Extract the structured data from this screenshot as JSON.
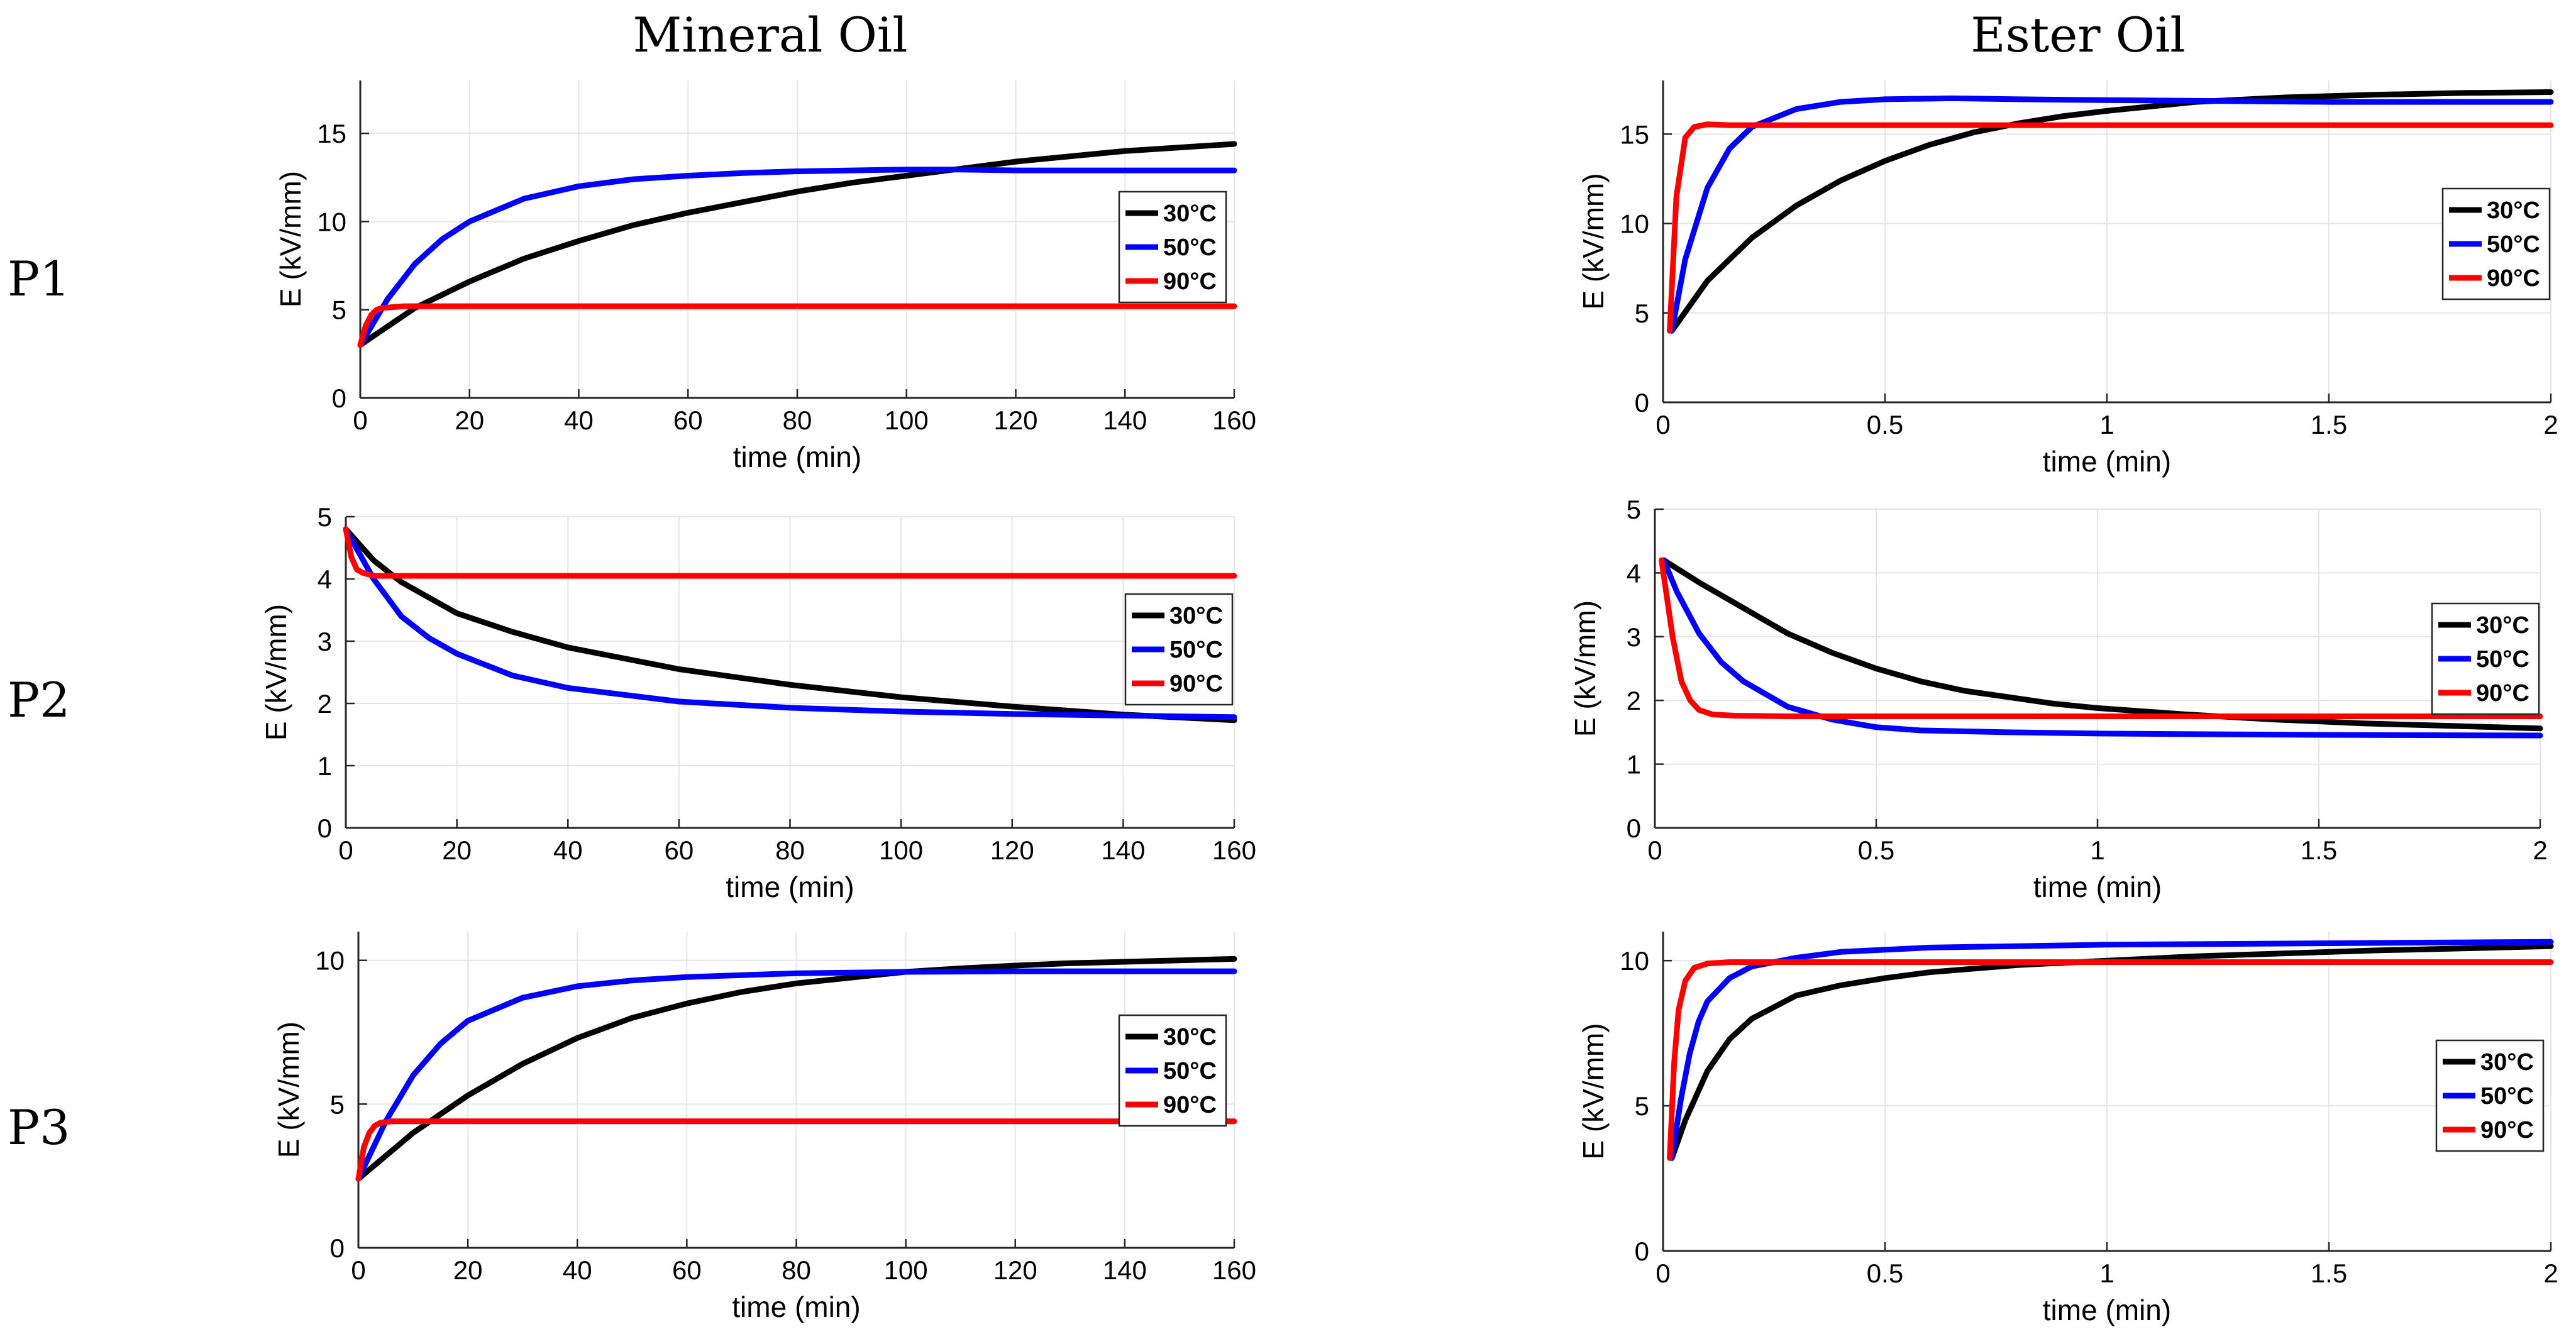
{
  "columns": [
    "Mineral Oil",
    "Ester Oil"
  ],
  "rows": [
    "P1",
    "P2",
    "P3"
  ],
  "colors": {
    "30": "#000000",
    "50": "#0000ff",
    "90": "#ff0000"
  },
  "chart_data": [
    {
      "id": "P1-mineral",
      "type": "line",
      "row": "P1",
      "column": "Mineral Oil",
      "xlabel": "time (min)",
      "ylabel": "E (kV/mm)",
      "xlim": [
        0,
        160
      ],
      "ylim": [
        0,
        18
      ],
      "xticks": [
        0,
        20,
        40,
        60,
        80,
        100,
        120,
        140,
        160
      ],
      "xtick_labels": [
        "0",
        "20",
        "40",
        "60",
        "80",
        "100",
        "120",
        "140",
        "160"
      ],
      "yticks": [
        0,
        5,
        10,
        15
      ],
      "ytick_labels": [
        "0",
        "5",
        "10",
        "15"
      ],
      "legend": "right",
      "series": [
        {
          "name": "30°C",
          "color": "#000000",
          "x": [
            0,
            10,
            20,
            30,
            40,
            50,
            60,
            70,
            80,
            90,
            100,
            110,
            120,
            130,
            140,
            150,
            160
          ],
          "y": [
            3.0,
            5.1,
            6.6,
            7.9,
            8.9,
            9.8,
            10.5,
            11.1,
            11.7,
            12.2,
            12.6,
            13.0,
            13.4,
            13.7,
            14.0,
            14.2,
            14.4
          ]
        },
        {
          "name": "50°C",
          "color": "#0000ff",
          "x": [
            0,
            5,
            10,
            15,
            20,
            30,
            40,
            50,
            60,
            70,
            80,
            90,
            100,
            110,
            120,
            140,
            160
          ],
          "y": [
            3.0,
            5.6,
            7.6,
            9.0,
            10.0,
            11.3,
            12.0,
            12.4,
            12.6,
            12.75,
            12.85,
            12.9,
            12.95,
            12.95,
            12.9,
            12.9,
            12.9
          ]
        },
        {
          "name": "90°C",
          "color": "#ff0000",
          "x": [
            0,
            1,
            2,
            3,
            4,
            6,
            8,
            20,
            60,
            100,
            160
          ],
          "y": [
            3.0,
            4.1,
            4.7,
            5.0,
            5.1,
            5.15,
            5.2,
            5.2,
            5.2,
            5.2,
            5.2
          ]
        }
      ]
    },
    {
      "id": "P1-ester",
      "type": "line",
      "row": "P1",
      "column": "Ester Oil",
      "xlabel": "time (min)",
      "ylabel": "E (kV/mm)",
      "xlim": [
        0,
        2
      ],
      "ylim": [
        0,
        18
      ],
      "xticks": [
        0,
        0.5,
        1,
        1.5,
        2
      ],
      "xtick_labels": [
        "0",
        "0.5",
        "1",
        "1.5",
        "2"
      ],
      "yticks": [
        0,
        5,
        10,
        15
      ],
      "ytick_labels": [
        "0",
        "5",
        "10",
        "15"
      ],
      "legend": "right",
      "series": [
        {
          "name": "30°C",
          "color": "#000000",
          "x": [
            0.02,
            0.1,
            0.2,
            0.3,
            0.4,
            0.5,
            0.6,
            0.7,
            0.8,
            0.9,
            1.0,
            1.2,
            1.4,
            1.6,
            1.8,
            2.0
          ],
          "y": [
            4.0,
            6.8,
            9.2,
            11.0,
            12.4,
            13.5,
            14.4,
            15.1,
            15.6,
            16.0,
            16.3,
            16.8,
            17.05,
            17.2,
            17.3,
            17.35
          ]
        },
        {
          "name": "50°C",
          "color": "#0000ff",
          "x": [
            0.02,
            0.05,
            0.1,
            0.15,
            0.2,
            0.3,
            0.4,
            0.5,
            0.65,
            0.8,
            1.0,
            1.5,
            2.0
          ],
          "y": [
            4.0,
            8.0,
            12.0,
            14.2,
            15.4,
            16.4,
            16.8,
            16.95,
            17.0,
            16.95,
            16.9,
            16.8,
            16.8
          ]
        },
        {
          "name": "90°C",
          "color": "#ff0000",
          "x": [
            0.015,
            0.03,
            0.05,
            0.07,
            0.1,
            0.15,
            0.5,
            1.0,
            2.0
          ],
          "y": [
            4.0,
            11.5,
            14.8,
            15.4,
            15.55,
            15.5,
            15.5,
            15.5,
            15.5
          ]
        }
      ]
    },
    {
      "id": "P2-mineral",
      "type": "line",
      "row": "P2",
      "column": "Mineral Oil",
      "xlabel": "time (min)",
      "ylabel": "E (kV/mm)",
      "xlim": [
        0,
        160
      ],
      "ylim": [
        0,
        5
      ],
      "xticks": [
        0,
        20,
        40,
        60,
        80,
        100,
        120,
        140,
        160
      ],
      "xtick_labels": [
        "0",
        "20",
        "40",
        "60",
        "80",
        "100",
        "120",
        "140",
        "160"
      ],
      "yticks": [
        0,
        1,
        2,
        3,
        4,
        5
      ],
      "ytick_labels": [
        "0",
        "1",
        "2",
        "3",
        "4",
        "5"
      ],
      "legend": "right",
      "series": [
        {
          "name": "30°C",
          "color": "#000000",
          "x": [
            0,
            5,
            10,
            20,
            30,
            40,
            60,
            80,
            100,
            120,
            140,
            160
          ],
          "y": [
            4.8,
            4.3,
            3.95,
            3.45,
            3.15,
            2.9,
            2.55,
            2.3,
            2.1,
            1.95,
            1.82,
            1.73
          ]
        },
        {
          "name": "50°C",
          "color": "#0000ff",
          "x": [
            0,
            5,
            10,
            15,
            20,
            30,
            40,
            60,
            80,
            100,
            120,
            160
          ],
          "y": [
            4.8,
            4.0,
            3.4,
            3.05,
            2.8,
            2.45,
            2.25,
            2.03,
            1.93,
            1.87,
            1.83,
            1.78
          ]
        },
        {
          "name": "90°C",
          "color": "#ff0000",
          "x": [
            0,
            1,
            2,
            3,
            5,
            10,
            160
          ],
          "y": [
            4.8,
            4.35,
            4.15,
            4.1,
            4.05,
            4.05,
            4.05
          ]
        }
      ]
    },
    {
      "id": "P2-ester",
      "type": "line",
      "row": "P2",
      "column": "Ester Oil",
      "xlabel": "time (min)",
      "ylabel": "E (kV/mm)",
      "xlim": [
        0,
        2
      ],
      "ylim": [
        0,
        5
      ],
      "xticks": [
        0,
        0.5,
        1,
        1.5,
        2
      ],
      "xtick_labels": [
        "0",
        "0.5",
        "1",
        "1.5",
        "2"
      ],
      "yticks": [
        0,
        1,
        2,
        3,
        4,
        5
      ],
      "ytick_labels": [
        "0",
        "1",
        "2",
        "3",
        "4",
        "5"
      ],
      "legend": "right",
      "series": [
        {
          "name": "30°C",
          "color": "#000000",
          "x": [
            0.02,
            0.1,
            0.2,
            0.3,
            0.4,
            0.5,
            0.6,
            0.7,
            0.8,
            0.9,
            1.0,
            1.2,
            1.4,
            1.6,
            1.8,
            2.0
          ],
          "y": [
            4.2,
            3.85,
            3.45,
            3.05,
            2.75,
            2.5,
            2.3,
            2.15,
            2.05,
            1.95,
            1.88,
            1.78,
            1.7,
            1.64,
            1.6,
            1.56
          ]
        },
        {
          "name": "50°C",
          "color": "#0000ff",
          "x": [
            0.02,
            0.05,
            0.1,
            0.15,
            0.2,
            0.3,
            0.4,
            0.5,
            0.6,
            0.8,
            1.0,
            1.5,
            2.0
          ],
          "y": [
            4.2,
            3.7,
            3.05,
            2.6,
            2.3,
            1.9,
            1.7,
            1.58,
            1.53,
            1.5,
            1.48,
            1.46,
            1.45
          ]
        },
        {
          "name": "90°C",
          "color": "#ff0000",
          "x": [
            0.015,
            0.04,
            0.06,
            0.08,
            0.1,
            0.13,
            0.18,
            0.3,
            1.0,
            2.0
          ],
          "y": [
            4.2,
            3.0,
            2.3,
            2.0,
            1.85,
            1.78,
            1.76,
            1.75,
            1.75,
            1.75
          ]
        }
      ]
    },
    {
      "id": "P3-mineral",
      "type": "line",
      "row": "P3",
      "column": "Mineral Oil",
      "xlabel": "time (min)",
      "ylabel": "E (kV/mm)",
      "xlim": [
        0,
        160
      ],
      "ylim": [
        0,
        11
      ],
      "xticks": [
        0,
        20,
        40,
        60,
        80,
        100,
        120,
        140,
        160
      ],
      "xtick_labels": [
        "0",
        "20",
        "40",
        "60",
        "80",
        "100",
        "120",
        "140",
        "160"
      ],
      "yticks": [
        0,
        5,
        10
      ],
      "ytick_labels": [
        "0",
        "5",
        "10"
      ],
      "legend": "right",
      "series": [
        {
          "name": "30°C",
          "color": "#000000",
          "x": [
            0,
            10,
            20,
            30,
            40,
            50,
            60,
            70,
            80,
            90,
            100,
            110,
            120,
            130,
            140,
            150,
            160
          ],
          "y": [
            2.4,
            4.0,
            5.3,
            6.4,
            7.3,
            8.0,
            8.5,
            8.9,
            9.2,
            9.4,
            9.6,
            9.72,
            9.82,
            9.9,
            9.95,
            10.0,
            10.05
          ]
        },
        {
          "name": "50°C",
          "color": "#0000ff",
          "x": [
            0,
            5,
            10,
            15,
            20,
            30,
            40,
            50,
            60,
            80,
            100,
            120,
            160
          ],
          "y": [
            2.4,
            4.4,
            6.0,
            7.1,
            7.9,
            8.7,
            9.1,
            9.3,
            9.42,
            9.55,
            9.6,
            9.62,
            9.62
          ]
        },
        {
          "name": "90°C",
          "color": "#ff0000",
          "x": [
            0,
            1,
            2,
            3,
            4,
            6,
            10,
            160
          ],
          "y": [
            2.4,
            3.5,
            4.0,
            4.25,
            4.35,
            4.4,
            4.4,
            4.4
          ]
        }
      ]
    },
    {
      "id": "P3-ester",
      "type": "line",
      "row": "P3",
      "column": "Ester Oil",
      "xlabel": "time (min)",
      "ylabel": "E (kV/mm)",
      "xlim": [
        0,
        2
      ],
      "ylim": [
        0,
        11
      ],
      "xticks": [
        0,
        0.5,
        1,
        1.5,
        2
      ],
      "xtick_labels": [
        "0",
        "0.5",
        "1",
        "1.5",
        "2"
      ],
      "yticks": [
        0,
        5,
        10
      ],
      "ytick_labels": [
        "0",
        "5",
        "10"
      ],
      "legend": "right",
      "series": [
        {
          "name": "30°C",
          "color": "#000000",
          "x": [
            0.02,
            0.05,
            0.1,
            0.15,
            0.2,
            0.3,
            0.4,
            0.5,
            0.6,
            0.8,
            1.0,
            1.2,
            1.4,
            1.6,
            1.8,
            2.0
          ],
          "y": [
            3.2,
            4.5,
            6.2,
            7.3,
            8.0,
            8.8,
            9.15,
            9.4,
            9.6,
            9.85,
            10.0,
            10.15,
            10.25,
            10.35,
            10.42,
            10.5
          ]
        },
        {
          "name": "50°C",
          "color": "#0000ff",
          "x": [
            0.02,
            0.04,
            0.06,
            0.08,
            0.1,
            0.15,
            0.2,
            0.3,
            0.4,
            0.6,
            0.8,
            1.0,
            1.5,
            2.0
          ],
          "y": [
            3.2,
            5.2,
            6.8,
            7.9,
            8.6,
            9.4,
            9.8,
            10.1,
            10.3,
            10.45,
            10.5,
            10.55,
            10.6,
            10.65
          ]
        },
        {
          "name": "90°C",
          "color": "#ff0000",
          "x": [
            0.015,
            0.025,
            0.035,
            0.05,
            0.07,
            0.1,
            0.15,
            0.3,
            1.0,
            2.0
          ],
          "y": [
            3.2,
            6.5,
            8.3,
            9.3,
            9.75,
            9.9,
            9.95,
            9.95,
            9.95,
            9.95
          ]
        }
      ]
    }
  ]
}
